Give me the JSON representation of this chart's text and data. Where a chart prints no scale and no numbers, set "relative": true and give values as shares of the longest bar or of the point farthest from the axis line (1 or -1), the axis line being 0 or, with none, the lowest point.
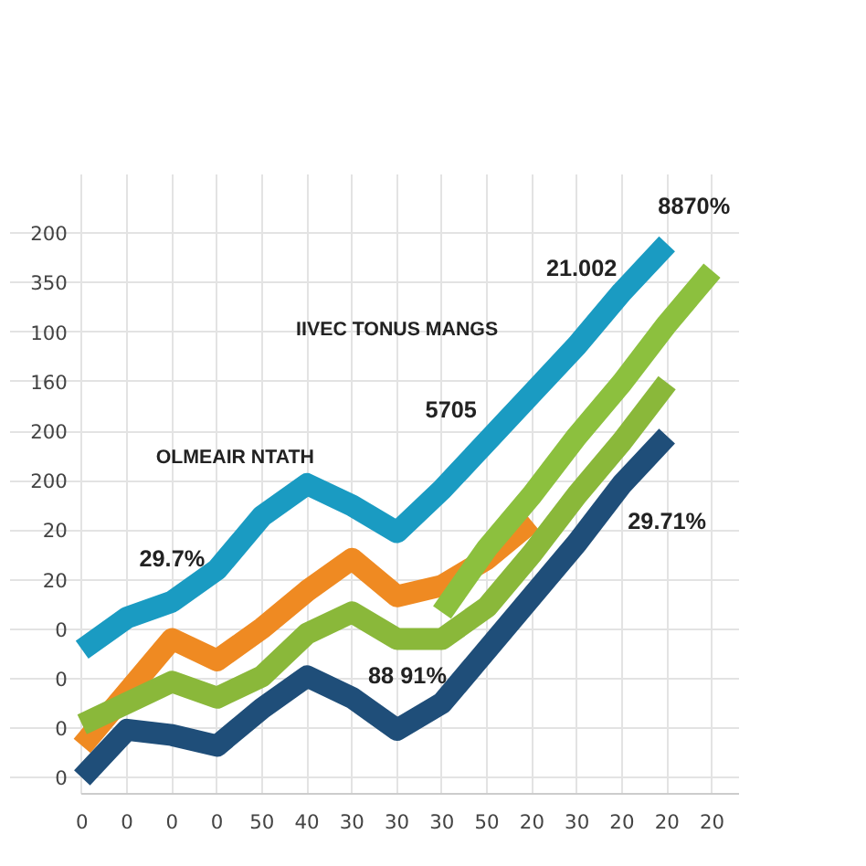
{
  "chart_data": {
    "type": "line",
    "relative": true,
    "categories": [
      "0",
      "0",
      "0",
      "0",
      "50",
      "40",
      "30",
      "30",
      "30",
      "50",
      "20",
      "30",
      "20",
      "20",
      "20"
    ],
    "grid": true,
    "line_style": "solid",
    "series": [
      {
        "color": "#1a9bc2",
        "values": [
          0.24,
          0.3,
          0.33,
          0.39,
          0.49,
          0.55,
          0.51,
          0.46,
          0.54,
          0.63,
          0.72,
          0.81,
          0.91,
          1.0,
          null
        ]
      },
      {
        "color": "#ef8a22",
        "values": [
          0.06,
          0.16,
          0.26,
          0.22,
          0.28,
          0.35,
          0.41,
          0.34,
          0.36,
          0.41,
          0.48,
          null,
          null,
          null,
          null
        ]
      },
      {
        "color": "#8ab83a",
        "values": [
          0.1,
          0.14,
          0.18,
          0.15,
          0.19,
          0.27,
          0.31,
          0.26,
          0.26,
          0.32,
          0.42,
          0.53,
          0.63,
          0.74,
          null
        ]
      },
      {
        "color": "#8cc03e",
        "values": [
          null,
          null,
          null,
          null,
          null,
          null,
          null,
          null,
          0.31,
          0.43,
          0.53,
          0.64,
          0.74,
          0.85,
          0.95
        ]
      },
      {
        "color": "#1f4e79",
        "values": [
          0,
          0.09,
          0.08,
          0.06,
          0.13,
          0.19,
          0.15,
          0.09,
          0.14,
          0.24,
          0.34,
          0.44,
          0.55,
          0.64,
          null
        ]
      }
    ],
    "annotations": [
      "8870%",
      "21.002",
      "5705",
      "29.7%",
      "88 91%",
      "29.71%",
      "IIVEC TONUS MANGS",
      "OLMEAIR NTATH",
      "0",
      "0",
      "0",
      "0",
      "20",
      "20",
      "200",
      "200",
      "160",
      "100",
      "350",
      "200"
    ]
  }
}
